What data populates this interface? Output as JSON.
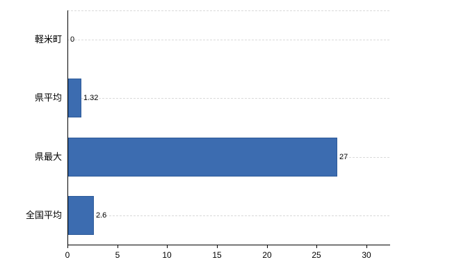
{
  "chart_data": {
    "type": "bar",
    "orientation": "horizontal",
    "title": "",
    "xlabel": "",
    "ylabel": "",
    "categories": [
      "軽米町",
      "県平均",
      "県最大",
      "全国平均"
    ],
    "values": [
      0,
      1.32,
      27,
      2.6
    ],
    "value_labels": [
      "0",
      "1.32",
      "27",
      "2.6"
    ],
    "xlim": [
      0,
      32.3
    ],
    "xticks": [
      0,
      5,
      10,
      15,
      20,
      25,
      30
    ],
    "xtick_labels": [
      "0",
      "5",
      "10",
      "15",
      "20",
      "25",
      "30"
    ],
    "grid": "horizontal dashed",
    "legend": "none",
    "bar_color": "#3c6cb0",
    "bar_border_color": "#2d5a99",
    "axis_color": "#000000",
    "gridline_color": "#d9d9d9",
    "background_color": "#ffffff"
  }
}
